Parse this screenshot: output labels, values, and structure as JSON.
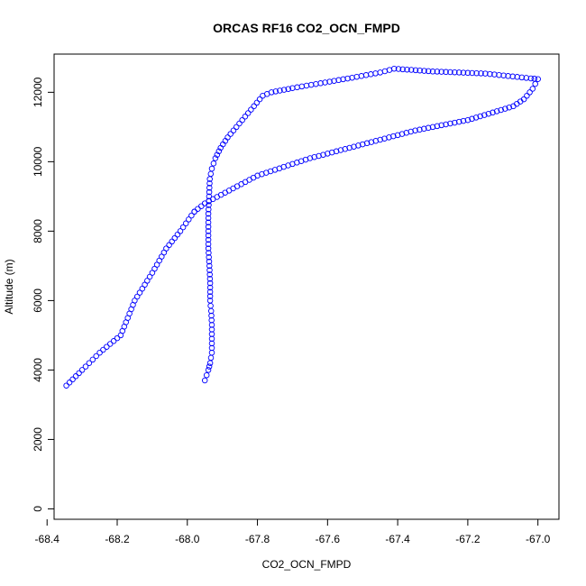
{
  "chart_data": {
    "type": "scatter",
    "title": "ORCAS RF16 CO2_OCN_FMPD",
    "xlabel": "CO2_OCN_FMPD",
    "ylabel": "Altitude (m)",
    "xlim": [
      -68.38,
      -66.94
    ],
    "ylim": [
      -300,
      13100
    ],
    "xticks": [
      -68.4,
      -68.2,
      -68.0,
      -67.8,
      -67.6,
      -67.4,
      -67.2,
      -67.0
    ],
    "xtick_labels": [
      "-68.4",
      "-68.2",
      "-68.0",
      "-67.8",
      "-67.6",
      "-67.4",
      "-67.2",
      "-67.0"
    ],
    "yticks": [
      0,
      2000,
      4000,
      6000,
      8000,
      10000,
      12000
    ],
    "ytick_labels": [
      "0",
      "2000",
      "4000",
      "6000",
      "8000",
      "10000",
      "12000"
    ],
    "grid": false,
    "legend": "none",
    "marker": "open-circle",
    "marker_color": "#0000ff",
    "paths": [
      [
        [
          -67.95,
          3700
        ],
        [
          -67.945,
          3850
        ],
        [
          -67.94,
          4000
        ],
        [
          -67.935,
          4200
        ],
        [
          -67.93,
          4500
        ],
        [
          -67.93,
          4900
        ],
        [
          -67.93,
          5300
        ],
        [
          -67.932,
          5700
        ],
        [
          -67.935,
          6000
        ],
        [
          -67.935,
          6500
        ],
        [
          -67.937,
          7000
        ],
        [
          -67.94,
          7500
        ],
        [
          -67.94,
          8000
        ],
        [
          -67.94,
          8500
        ],
        [
          -67.938,
          9000
        ],
        [
          -67.936,
          9500
        ],
        [
          -67.93,
          9800
        ],
        [
          -67.92,
          10100
        ],
        [
          -67.905,
          10400
        ],
        [
          -67.885,
          10700
        ],
        [
          -67.86,
          11000
        ],
        [
          -67.835,
          11300
        ],
        [
          -67.81,
          11600
        ],
        [
          -67.785,
          11900
        ],
        [
          -67.76,
          12000
        ],
        [
          -67.7,
          12120
        ],
        [
          -67.62,
          12260
        ],
        [
          -67.53,
          12420
        ],
        [
          -67.45,
          12570
        ],
        [
          -67.41,
          12680
        ],
        [
          -67.3,
          12600
        ],
        [
          -67.15,
          12540
        ],
        [
          -67.02,
          12400
        ],
        [
          -67.0,
          12380
        ],
        [
          -67.015,
          12100
        ],
        [
          -67.04,
          11800
        ],
        [
          -67.07,
          11600
        ],
        [
          -67.2,
          11200
        ],
        [
          -67.35,
          10900
        ],
        [
          -67.5,
          10500
        ],
        [
          -67.65,
          10100
        ],
        [
          -67.8,
          9600
        ],
        [
          -67.95,
          8800
        ],
        [
          -67.98,
          8560
        ]
      ],
      [
        [
          -67.98,
          8560
        ],
        [
          -68.02,
          8000
        ],
        [
          -68.06,
          7500
        ],
        [
          -68.1,
          6800
        ],
        [
          -68.15,
          6000
        ],
        [
          -68.19,
          5000
        ],
        [
          -68.25,
          4500
        ],
        [
          -68.3,
          4000
        ],
        [
          -68.345,
          3550
        ]
      ]
    ]
  }
}
